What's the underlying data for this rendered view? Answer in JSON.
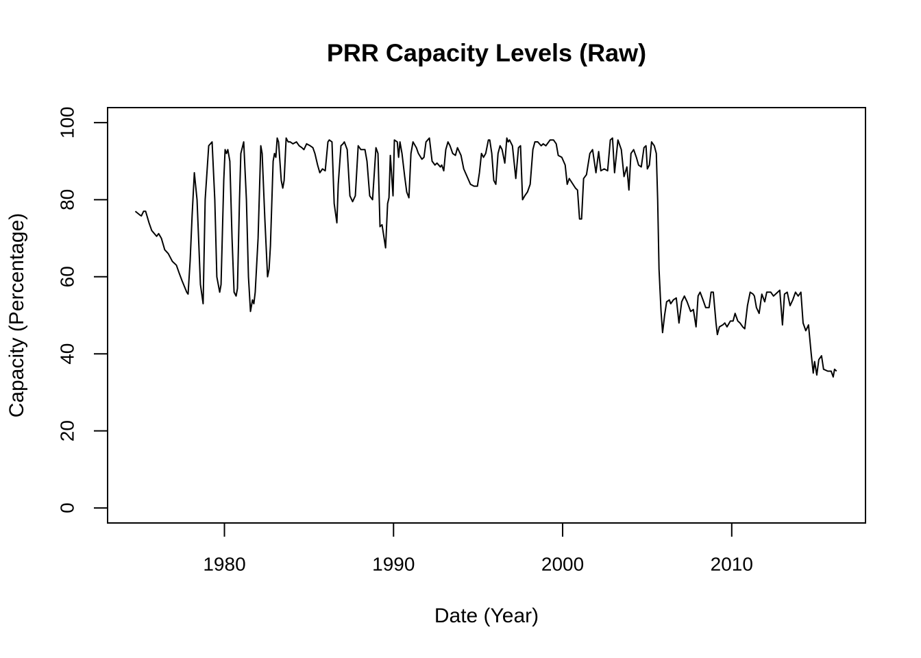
{
  "chart_data": {
    "type": "line",
    "title": "PRR Capacity Levels (Raw)",
    "x_label": "Date (Year)",
    "y_label": "Capacity (Percentage)",
    "color": "#000000",
    "xlim": [
      1973.09,
      2017.91
    ],
    "ylim": [
      -3.9,
      103.9
    ],
    "xticks": [
      1980,
      1990,
      2000,
      2010
    ],
    "yticks": [
      0,
      20,
      40,
      60,
      80,
      100
    ],
    "x": [
      1974.73,
      1975.01,
      1975.09,
      1975.22,
      1975.34,
      1975.54,
      1975.7,
      1975.99,
      1976.11,
      1976.27,
      1976.47,
      1976.68,
      1976.92,
      1977.16,
      1977.32,
      1977.49,
      1977.77,
      1977.85,
      1977.97,
      1978.09,
      1978.22,
      1978.38,
      1978.58,
      1978.74,
      1978.86,
      1979.07,
      1979.27,
      1979.43,
      1979.55,
      1979.72,
      1979.8,
      1979.96,
      1980.04,
      1980.12,
      1980.2,
      1980.32,
      1980.45,
      1980.57,
      1980.69,
      1980.77,
      1980.89,
      1980.97,
      1981.14,
      1981.3,
      1981.42,
      1981.54,
      1981.66,
      1981.74,
      1981.82,
      1981.99,
      1982.15,
      1982.23,
      1982.39,
      1982.55,
      1982.64,
      1982.72,
      1982.88,
      1982.96,
      1983.04,
      1983.12,
      1983.2,
      1983.36,
      1983.45,
      1983.53,
      1983.65,
      1983.77,
      1983.89,
      1984.05,
      1984.26,
      1984.42,
      1984.58,
      1984.7,
      1984.86,
      1985.07,
      1985.23,
      1985.35,
      1985.51,
      1985.64,
      1985.8,
      1985.96,
      1986.12,
      1986.2,
      1986.36,
      1986.49,
      1986.65,
      1986.73,
      1986.89,
      1987.01,
      1987.09,
      1987.26,
      1987.42,
      1987.58,
      1987.74,
      1987.91,
      1988.07,
      1988.31,
      1988.43,
      1988.59,
      1988.76,
      1988.96,
      1989.08,
      1989.2,
      1989.32,
      1989.53,
      1989.65,
      1989.73,
      1989.81,
      1989.97,
      1990.05,
      1990.22,
      1990.3,
      1990.38,
      1990.5,
      1990.66,
      1990.78,
      1990.91,
      1991.03,
      1991.15,
      1991.35,
      1991.47,
      1991.68,
      1991.8,
      1991.92,
      1992.12,
      1992.28,
      1992.45,
      1992.57,
      1992.77,
      1992.85,
      1992.97,
      1993.09,
      1993.22,
      1993.34,
      1993.5,
      1993.66,
      1993.78,
      1993.99,
      1994.15,
      1994.35,
      1994.55,
      1994.76,
      1994.96,
      1995.08,
      1995.2,
      1995.32,
      1995.45,
      1995.61,
      1995.69,
      1995.81,
      1995.93,
      1996.05,
      1996.18,
      1996.3,
      1996.42,
      1996.58,
      1996.7,
      1996.78,
      1996.86,
      1997.03,
      1997.23,
      1997.39,
      1997.51,
      1997.63,
      1997.76,
      1997.92,
      1998.08,
      1998.24,
      1998.36,
      1998.53,
      1998.73,
      1998.85,
      1999.01,
      1999.26,
      1999.46,
      1999.62,
      1999.74,
      1999.95,
      2000.15,
      2000.27,
      2000.39,
      2000.76,
      2000.88,
      2001.0,
      2001.12,
      2001.24,
      2001.41,
      2001.61,
      2001.77,
      2001.97,
      2002.13,
      2002.26,
      2002.46,
      2002.66,
      2002.82,
      2002.95,
      2003.07,
      2003.27,
      2003.47,
      2003.63,
      2003.8,
      2003.92,
      2004.04,
      2004.2,
      2004.36,
      2004.49,
      2004.65,
      2004.81,
      2004.93,
      2005.01,
      2005.13,
      2005.26,
      2005.42,
      2005.54,
      2005.62,
      2005.7,
      2005.82,
      2005.91,
      2006.03,
      2006.15,
      2006.31,
      2006.39,
      2006.55,
      2006.72,
      2006.88,
      2007.04,
      2007.2,
      2007.36,
      2007.57,
      2007.73,
      2007.89,
      2008.01,
      2008.13,
      2008.3,
      2008.46,
      2008.66,
      2008.78,
      2008.91,
      2009.07,
      2009.15,
      2009.27,
      2009.47,
      2009.59,
      2009.72,
      2009.92,
      2010.08,
      2010.2,
      2010.36,
      2010.49,
      2010.65,
      2010.77,
      2010.93,
      2011.09,
      2011.26,
      2011.34,
      2011.46,
      2011.62,
      2011.78,
      2011.95,
      2012.07,
      2012.31,
      2012.47,
      2012.84,
      2013.0,
      2013.12,
      2013.28,
      2013.45,
      2013.61,
      2013.77,
      2013.93,
      2014.09,
      2014.22,
      2014.38,
      2014.54,
      2014.7,
      2014.82,
      2014.9,
      2015.03,
      2015.15,
      2015.31,
      2015.43,
      2015.68,
      2015.88,
      2016.0,
      2016.08,
      2016.2
    ],
    "values": [
      77,
      76,
      75.8,
      77,
      77,
      74,
      72,
      70.5,
      71.2,
      70,
      67,
      66,
      64,
      63,
      61,
      59,
      56,
      55.5,
      64,
      76,
      87,
      80,
      58,
      53,
      80,
      94,
      95,
      80,
      60,
      56,
      58,
      85,
      93,
      92,
      93,
      90,
      70,
      56,
      55,
      57,
      80,
      92,
      95,
      80,
      60,
      51,
      54,
      53,
      56,
      70,
      94,
      92,
      75,
      60,
      62,
      68,
      90,
      92,
      91,
      96,
      95,
      85,
      83,
      85,
      96,
      95,
      95,
      94.5,
      95,
      94,
      93.5,
      93,
      94.5,
      94,
      93.5,
      92,
      89,
      87,
      88,
      87.5,
      95,
      95.5,
      95,
      79,
      74,
      84,
      94,
      94.5,
      95,
      93,
      81,
      79.5,
      81,
      94,
      93,
      93,
      90,
      81,
      80,
      93.5,
      92,
      73,
      73.5,
      67.5,
      79,
      80.5,
      91.5,
      81,
      95.5,
      95,
      91,
      95,
      92,
      86,
      82,
      80.5,
      92,
      95,
      93.5,
      92,
      90.5,
      91,
      95,
      96,
      90,
      89,
      89.5,
      88.5,
      89,
      87.5,
      93,
      95,
      94,
      92,
      91.5,
      93.5,
      91.5,
      88,
      86,
      84,
      83.5,
      83.5,
      87,
      92,
      91,
      92,
      95.5,
      95.5,
      92,
      85,
      84,
      92,
      94,
      93,
      89.5,
      96,
      95,
      95.5,
      94,
      85.5,
      93.5,
      94,
      80,
      81,
      82,
      84,
      93,
      95,
      95,
      94,
      94.5,
      94,
      95.5,
      95.5,
      94.5,
      91.5,
      91,
      89,
      84,
      85.5,
      83,
      82.5,
      75,
      75,
      85.5,
      86.5,
      92,
      93,
      87,
      92.5,
      87.5,
      88,
      87.5,
      95.5,
      96,
      87,
      95.5,
      93,
      86,
      88.5,
      82.5,
      92,
      93,
      91,
      89,
      88.5,
      93.5,
      94,
      88,
      89,
      95,
      94,
      92,
      80,
      62,
      51,
      45.5,
      50,
      53.5,
      54,
      53,
      54,
      54.5,
      48,
      53.5,
      55,
      53.5,
      51,
      51.5,
      47,
      55,
      56,
      54,
      52,
      52,
      56,
      56,
      48,
      45,
      47,
      47.5,
      48,
      47,
      48.5,
      48.5,
      50.5,
      48.5,
      48,
      47,
      46.5,
      52.5,
      56,
      55.5,
      55,
      52,
      50.5,
      55.5,
      53.5,
      56,
      56,
      55,
      56.5,
      47.5,
      55.5,
      56,
      52.5,
      54,
      56,
      55,
      56,
      48,
      46,
      47.5,
      40,
      35,
      38,
      34.5,
      38.5,
      39.5,
      36,
      35.5,
      35.5,
      34,
      36,
      35.5
    ]
  }
}
